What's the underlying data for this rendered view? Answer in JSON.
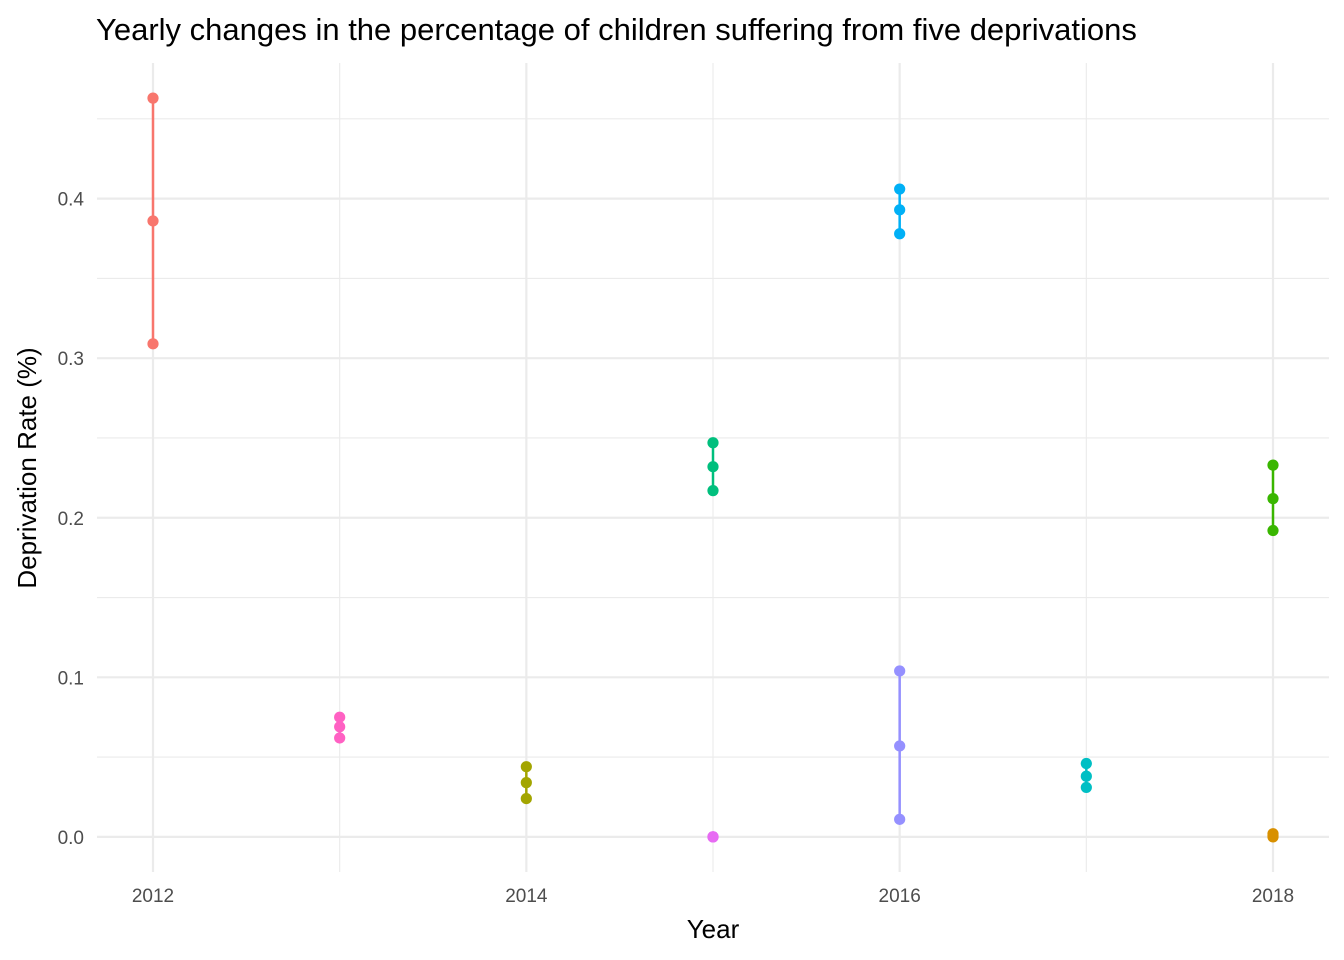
{
  "chart_data": {
    "type": "line",
    "title": "Yearly changes in the percentage of children suffering from five deprivations",
    "xlabel": "Year",
    "ylabel": "Deprivation Rate (%)",
    "xlim": [
      2011.7,
      2018.3
    ],
    "ylim": [
      -0.022,
      0.485
    ],
    "x_ticks": [
      2012,
      2014,
      2016,
      2018
    ],
    "y_ticks": [
      0.0,
      0.1,
      0.2,
      0.3,
      0.4
    ],
    "y_tick_labels": [
      "0.0",
      "0.1",
      "0.2",
      "0.3",
      "0.4"
    ],
    "grid": true,
    "legend": "none",
    "series": [
      {
        "x": 2012,
        "color": "#F8766D",
        "values": [
          0.309,
          0.386,
          0.463
        ]
      },
      {
        "x": 2013,
        "color": "#FF61C3",
        "values": [
          0.062,
          0.069,
          0.075
        ]
      },
      {
        "x": 2014,
        "color": "#A3A500",
        "values": [
          0.024,
          0.034,
          0.044
        ]
      },
      {
        "x": 2015,
        "color": "#00BF7D",
        "values": [
          0.217,
          0.232,
          0.247
        ]
      },
      {
        "x": 2015,
        "color": "#E76BF3",
        "values": [
          0.0,
          0.0,
          0.0
        ]
      },
      {
        "x": 2016,
        "color": "#00B0F6",
        "values": [
          0.378,
          0.393,
          0.406
        ]
      },
      {
        "x": 2016,
        "color": "#9590FF",
        "values": [
          0.011,
          0.057,
          0.104
        ]
      },
      {
        "x": 2017,
        "color": "#00BFC4",
        "values": [
          0.031,
          0.038,
          0.046
        ]
      },
      {
        "x": 2018,
        "color": "#39B600",
        "values": [
          0.192,
          0.212,
          0.233
        ]
      },
      {
        "x": 2018,
        "color": "#D89000",
        "values": [
          0.0,
          0.001,
          0.002
        ]
      }
    ]
  }
}
